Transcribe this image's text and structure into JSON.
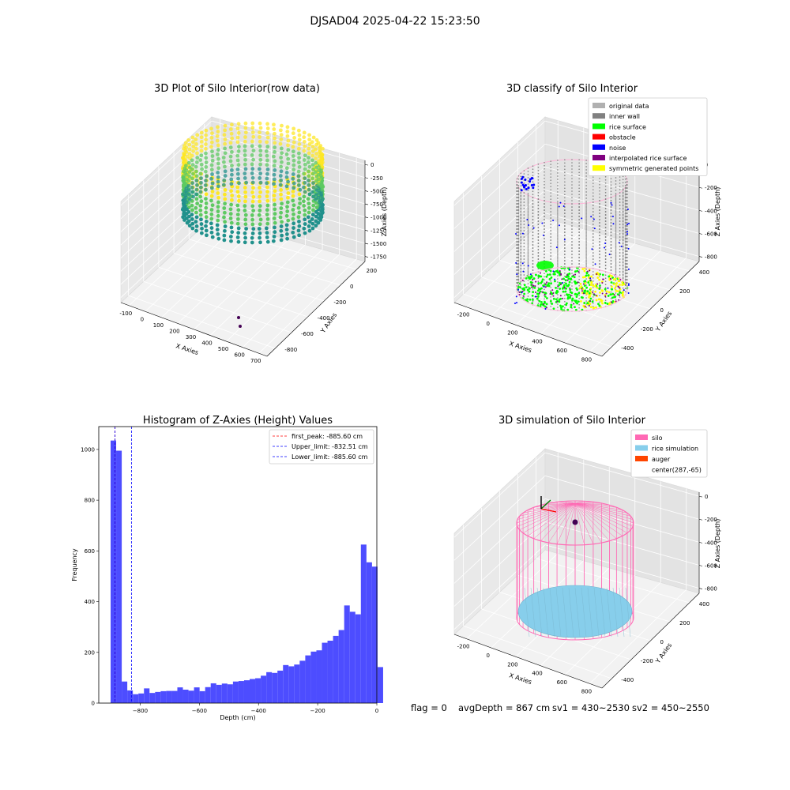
{
  "suptitle": "DJSAD04 2025-04-22 15:23:50",
  "status": {
    "flag": "flag = 0",
    "avg_depth": "avgDepth = 867 cm",
    "sv1": "sv1 = 430~2530",
    "sv2": "sv2 = 450~2550"
  },
  "chart_data": [
    {
      "type": "scatter",
      "title": "3D Plot of Silo Interior(row data)",
      "xlabel": "X Axies",
      "ylabel": "Y Axies",
      "zlabel": "Z Axies (Depth)",
      "x_ticks": [
        "-100",
        "0",
        "100",
        "200",
        "300",
        "400",
        "500",
        "600",
        "700"
      ],
      "y_ticks": [
        "-800",
        "-600",
        "-400",
        "-200",
        "0",
        "200"
      ],
      "z_ticks": [
        "0",
        "-250",
        "-500",
        "-750",
        "-1000",
        "-1250",
        "-1500",
        "-1750"
      ],
      "colormap": [
        "#440154",
        "#21918c",
        "#5ec962",
        "#fde725"
      ]
    },
    {
      "type": "scatter",
      "title": "3D classify of Silo Interior",
      "xlabel": "X Axies",
      "ylabel": "Y Axies",
      "zlabel": "Z Axies (Depth)",
      "x_ticks": [
        "-200",
        "0",
        "200",
        "400",
        "600",
        "800"
      ],
      "y_ticks": [
        "-400",
        "-200",
        "0",
        "200",
        "400"
      ],
      "z_ticks": [
        "0",
        "-200",
        "-400",
        "-600",
        "-800"
      ],
      "legend_position": "top-right",
      "legend": [
        {
          "label": "original data",
          "color": "#b0b0b0"
        },
        {
          "label": "inner wall",
          "color": "#808080"
        },
        {
          "label": "rice surface",
          "color": "#00ff00"
        },
        {
          "label": "obstacle",
          "color": "#ff0000"
        },
        {
          "label": "noise",
          "color": "#0000ff"
        },
        {
          "label": "interpolated rice surface",
          "color": "#800080"
        },
        {
          "label": "symmetric generated points",
          "color": "#ffff00"
        }
      ]
    },
    {
      "type": "bar",
      "title": "Histogram of Z-Axies (Height) Values",
      "xlabel": "Depth (cm)",
      "ylabel": "Frequency",
      "xlim": [
        -900,
        0
      ],
      "ylim": [
        0,
        1090
      ],
      "x_ticks": [
        -800,
        -600,
        -400,
        -200,
        0
      ],
      "y_ticks": [
        0,
        200,
        400,
        600,
        800,
        1000
      ],
      "bar_color": "#4d4dff",
      "bin_start": -900,
      "bin_width": 18,
      "values": [
        1035,
        995,
        85,
        50,
        35,
        38,
        58,
        40,
        44,
        47,
        48,
        48,
        62,
        53,
        49,
        62,
        47,
        63,
        78,
        72,
        77,
        74,
        85,
        87,
        90,
        95,
        98,
        108,
        122,
        119,
        128,
        150,
        145,
        152,
        167,
        188,
        203,
        208,
        238,
        246,
        265,
        288,
        385,
        360,
        350,
        625,
        555,
        538,
        142
      ],
      "vlines": [
        {
          "label": "first_peak: -885.60 cm",
          "value": -885.6,
          "color": "#ff0000"
        },
        {
          "label": "Upper_limit: -832.51 cm",
          "value": -832.51,
          "color": "#0000ff"
        },
        {
          "label": "Lower_limit: -885.60 cm",
          "value": -885.6,
          "color": "#0000ff"
        }
      ],
      "legend_position": "top-right"
    },
    {
      "type": "scatter",
      "title": "3D simulation of Silo Interior",
      "xlabel": "X Axies",
      "ylabel": "Y Axies",
      "zlabel": "Z Axies (Depth)",
      "x_ticks": [
        "-200",
        "0",
        "200",
        "400",
        "600",
        "800"
      ],
      "y_ticks": [
        "-400",
        "-200",
        "0",
        "200",
        "400"
      ],
      "z_ticks": [
        "0",
        "-200",
        "-400",
        "-600",
        "-800"
      ],
      "legend_position": "top-right",
      "legend": [
        {
          "label": "silo",
          "color": "#ff69b4"
        },
        {
          "label": "rice simulation",
          "color": "#87ceeb"
        },
        {
          "label": "auger",
          "color": "#ff4500"
        },
        {
          "label": "center(287,-65)",
          "color": "none"
        }
      ]
    }
  ]
}
